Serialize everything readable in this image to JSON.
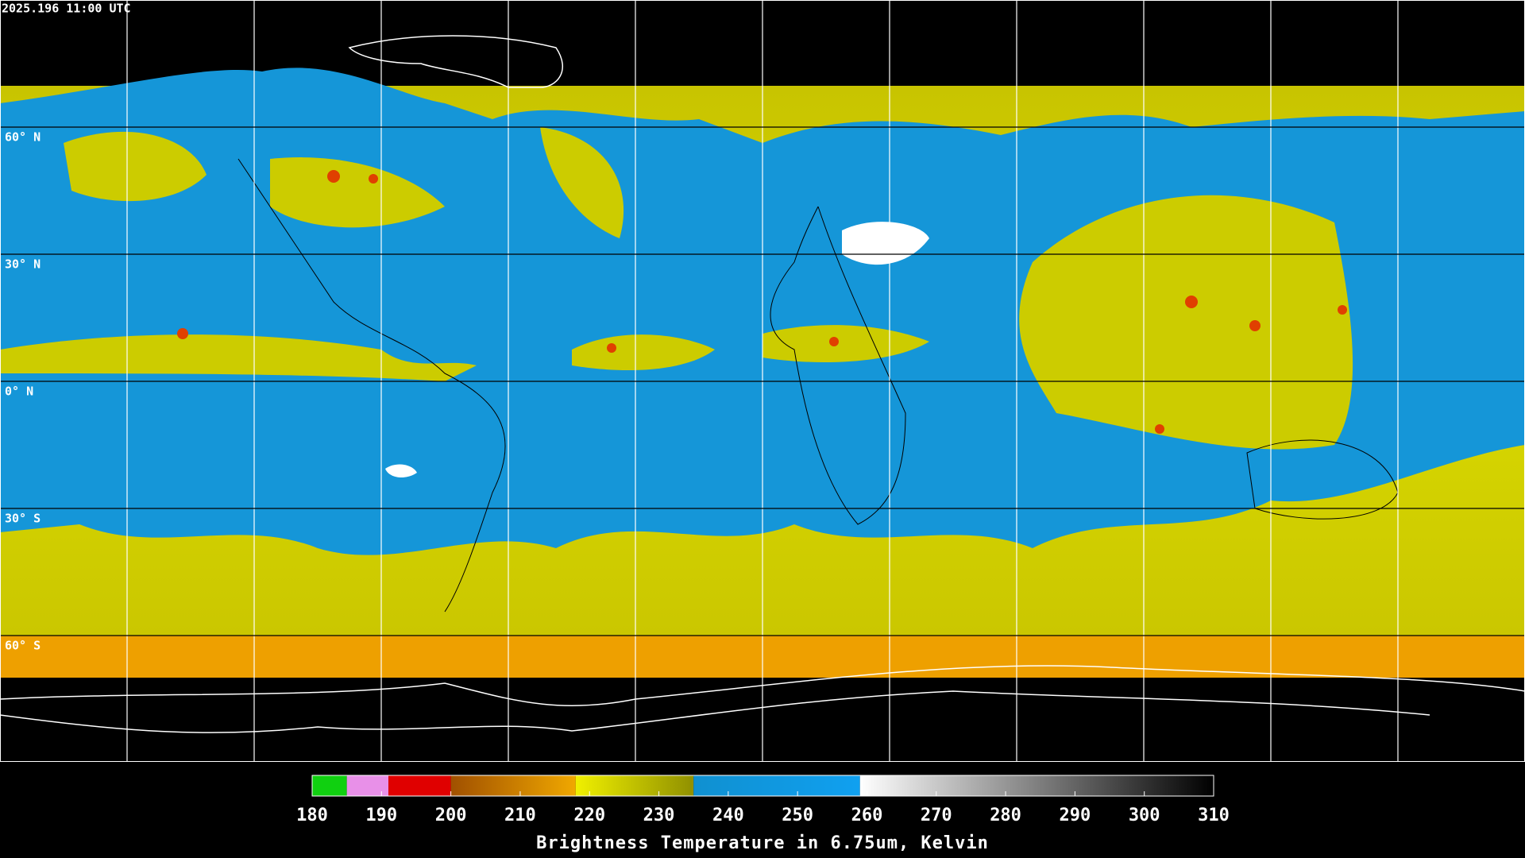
{
  "header": {
    "timestamp": "2025.196 11:00 UTC"
  },
  "map": {
    "latitude_labels": [
      {
        "value": 60,
        "label": "60° N"
      },
      {
        "value": 30,
        "label": "30° N"
      },
      {
        "value": 0,
        "label": "0° N"
      },
      {
        "value": -30,
        "label": "30° S"
      },
      {
        "value": -60,
        "label": "60° S"
      }
    ]
  },
  "colorbar": {
    "lim": [
      180,
      310
    ],
    "ticks": [
      180,
      190,
      200,
      210,
      220,
      230,
      240,
      250,
      260,
      270,
      280,
      290,
      300,
      310
    ],
    "segments": [
      {
        "from": 180,
        "to": 185,
        "colors": [
          "#10d010",
          "#10d010"
        ]
      },
      {
        "from": 185,
        "to": 191,
        "colors": [
          "#e890e8",
          "#e890e8"
        ]
      },
      {
        "from": 191,
        "to": 200,
        "colors": [
          "#e00000",
          "#e00000"
        ]
      },
      {
        "from": 200,
        "to": 218,
        "colors": [
          "#a05000",
          "#f0a800"
        ]
      },
      {
        "from": 218,
        "to": 235,
        "colors": [
          "#f0f000",
          "#909000"
        ]
      },
      {
        "from": 235,
        "to": 259,
        "colors": [
          "#1090d0",
          "#10a0f0"
        ]
      },
      {
        "from": 259,
        "to": 310,
        "colors": [
          "#ffffff",
          "#000000"
        ]
      }
    ],
    "label": "Brightness Temperature in 6.75um, Kelvin"
  }
}
